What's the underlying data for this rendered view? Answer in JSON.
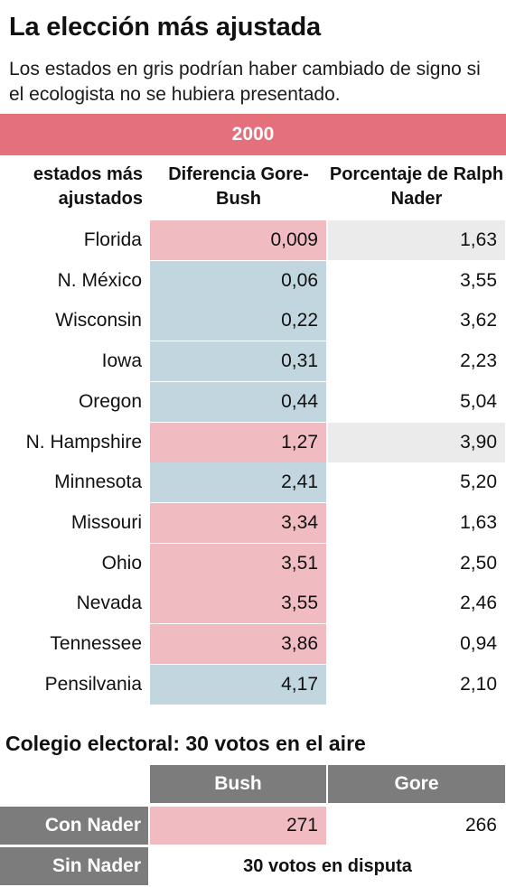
{
  "title": "La elección más ajustada",
  "subtitle": "Los estados en gris podrían haber cambiado de signo si el ecologista no se hubiera presentado.",
  "colors": {
    "header_red": "#e3707a",
    "bush_pink": "#f0bcc1",
    "gore_blue": "#c1d6df",
    "swing_gray": "#ebebeb",
    "header_gray": "#7c7c7c"
  },
  "chart_data": {
    "type": "table",
    "year": "2000",
    "columns": {
      "state": "estados más ajustados",
      "diff": "Diferencia Gore-Bush",
      "nader": "Porcentaje de Ralph Nader"
    },
    "rows": [
      {
        "state": "Florida",
        "diff": "0,009",
        "nader": "1,63",
        "winner": "bush",
        "swing": true
      },
      {
        "state": "N. México",
        "diff": "0,06",
        "nader": "3,55",
        "winner": "gore",
        "swing": false
      },
      {
        "state": "Wisconsin",
        "diff": "0,22",
        "nader": "3,62",
        "winner": "gore",
        "swing": false
      },
      {
        "state": "Iowa",
        "diff": "0,31",
        "nader": "2,23",
        "winner": "gore",
        "swing": false
      },
      {
        "state": "Oregon",
        "diff": "0,44",
        "nader": "5,04",
        "winner": "gore",
        "swing": false
      },
      {
        "state": "N. Hampshire",
        "diff": "1,27",
        "nader": "3,90",
        "winner": "bush",
        "swing": true
      },
      {
        "state": "Minnesota",
        "diff": "2,41",
        "nader": "5,20",
        "winner": "gore",
        "swing": false
      },
      {
        "state": "Missouri",
        "diff": "3,34",
        "nader": "1,63",
        "winner": "bush",
        "swing": false
      },
      {
        "state": "Ohio",
        "diff": "3,51",
        "nader": "2,50",
        "winner": "bush",
        "swing": false
      },
      {
        "state": "Nevada",
        "diff": "3,55",
        "nader": "2,46",
        "winner": "bush",
        "swing": false
      },
      {
        "state": "Tennessee",
        "diff": "3,86",
        "nader": "0,94",
        "winner": "bush",
        "swing": false
      },
      {
        "state": "Pensilvania",
        "diff": "4,17",
        "nader": "2,10",
        "winner": "gore",
        "swing": false
      }
    ]
  },
  "electoral": {
    "title": "Colegio electoral: 30 votos en el aire",
    "bush_label": "Bush",
    "gore_label": "Gore",
    "with_nader_label": "Con Nader",
    "without_nader_label": "Sin Nader",
    "bush_votes": "271",
    "gore_votes": "266",
    "disputed": "30 votos en disputa"
  }
}
